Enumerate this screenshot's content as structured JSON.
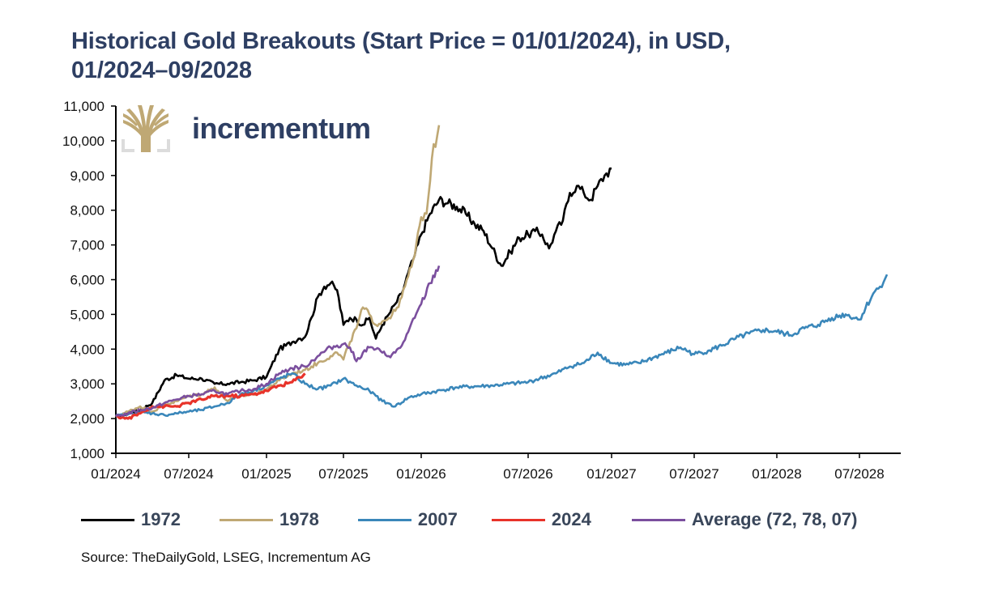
{
  "title_line1": "Historical Gold Breakouts (Start Price = 01/01/2024), in USD,",
  "title_line2": "01/2024–09/2028",
  "brand": {
    "name": "incrementum",
    "logo_icon": "tree-icon",
    "logo_color": "#bfa874",
    "name_color": "#2e3f63"
  },
  "source": "Source: TheDailyGold, LSEG, Incrementum AG",
  "chart_data": {
    "type": "line",
    "title": "Historical Gold Breakouts (Start Price = 01/01/2024), in USD, 01/2024–09/2028",
    "xlabel": "",
    "ylabel": "",
    "ylim": [
      1000,
      11000
    ],
    "yticks": [
      1000,
      2000,
      3000,
      4000,
      5000,
      6000,
      7000,
      8000,
      9000,
      10000,
      11000
    ],
    "ytick_labels": [
      "1,000",
      "2,000",
      "3,000",
      "4,000",
      "5,000",
      "6,000",
      "7,000",
      "8,000",
      "9,000",
      "10,000",
      "11,000"
    ],
    "xticks_months": [
      0,
      6,
      12,
      18,
      24,
      30,
      36,
      42,
      48,
      54
    ],
    "xtick_labels": [
      "01/2024",
      "07/2024",
      "01/2025",
      "07/2025",
      "01/2026",
      "07/2026",
      "01/2027",
      "07/2027",
      "01/2028",
      "07/2028"
    ],
    "xlim_months": [
      0,
      57
    ],
    "x_unit": "months since 01/2024",
    "grid": false,
    "legend_position": "bottom",
    "series": [
      {
        "name": "1972",
        "color": "#000000",
        "x": [
          0,
          1,
          2,
          3,
          4,
          5,
          6,
          7,
          8,
          9,
          10,
          11,
          12,
          13,
          14,
          14.5,
          15,
          15.5,
          16,
          16.5,
          17,
          17.5,
          18,
          18.5,
          19,
          19.5,
          20,
          20.5,
          21,
          21.5,
          22,
          22.5,
          23,
          23.5,
          24,
          24.5,
          25,
          25.5,
          26,
          26.5,
          27,
          27.5,
          28,
          28.5,
          29,
          29.5,
          30,
          30.5,
          31,
          31.5,
          32,
          32.5,
          33,
          33.5,
          34,
          34.5,
          35,
          35.5,
          36
        ],
        "values": [
          2060,
          2150,
          2250,
          2450,
          3100,
          3250,
          3150,
          3150,
          3000,
          3000,
          3050,
          3100,
          3200,
          4000,
          4200,
          4300,
          4350,
          4900,
          5500,
          5800,
          5900,
          5700,
          4700,
          4900,
          4850,
          4700,
          4900,
          4300,
          4700,
          5000,
          5300,
          5600,
          6200,
          6700,
          7300,
          7900,
          8300,
          8200,
          8100,
          7900,
          7600,
          7400,
          6900,
          6400,
          6800,
          7200,
          7300,
          7400,
          7300,
          6900,
          7400,
          7700,
          8500,
          8700,
          8500,
          8300,
          8700,
          9000,
          9200
        ]
      },
      {
        "name": "1978",
        "color": "#bfa874",
        "x": [
          0,
          1,
          2,
          3,
          4,
          5,
          6,
          7,
          8,
          9,
          10,
          11,
          12,
          13,
          14,
          15,
          16,
          17,
          17.5,
          18,
          18.5,
          19,
          19.5,
          20,
          20.5,
          21,
          21.5,
          22,
          22.5,
          23,
          23.5,
          24,
          24.3,
          24.6,
          25
        ],
        "values": [
          2050,
          2200,
          2350,
          2200,
          2400,
          2500,
          2650,
          2700,
          2900,
          2500,
          2650,
          2700,
          2850,
          3100,
          3300,
          3400,
          3600,
          3800,
          3900,
          3700,
          4200,
          4600,
          5200,
          5000,
          4700,
          4800,
          4900,
          5100,
          5500,
          6100,
          6700,
          7800,
          7900,
          9500,
          10450
        ]
      },
      {
        "name": "2007",
        "color": "#3a87ba",
        "x": [
          0,
          1,
          2,
          3,
          4,
          5,
          6,
          7,
          8,
          9,
          10,
          11,
          12,
          13,
          14,
          15,
          16,
          17,
          18,
          19,
          20,
          21,
          22,
          23,
          24,
          26,
          28,
          30,
          32,
          33,
          34,
          35,
          36,
          37,
          38,
          39,
          40,
          41,
          42,
          43,
          44,
          45,
          46,
          47,
          48,
          49,
          50,
          51,
          52,
          53,
          54,
          55,
          55.5,
          56
        ],
        "values": [
          2080,
          2120,
          2180,
          2150,
          2100,
          2150,
          2200,
          2250,
          2350,
          2450,
          2700,
          2800,
          2950,
          3150,
          3300,
          3000,
          2850,
          2950,
          3150,
          2950,
          2800,
          2500,
          2350,
          2600,
          2700,
          2900,
          2950,
          3050,
          3300,
          3500,
          3600,
          3900,
          3600,
          3550,
          3600,
          3750,
          3900,
          4050,
          3850,
          3950,
          4100,
          4300,
          4450,
          4550,
          4500,
          4400,
          4600,
          4700,
          4900,
          5000,
          4850,
          5600,
          5800,
          6150
        ]
      },
      {
        "name": "2024",
        "color": "#e8332a",
        "x": [
          0,
          1,
          2,
          3,
          4,
          5,
          6,
          7,
          8,
          9,
          10,
          11,
          12,
          13,
          14,
          15
        ],
        "values": [
          2060,
          2000,
          2150,
          2350,
          2350,
          2350,
          2450,
          2550,
          2650,
          2650,
          2650,
          2700,
          2800,
          2950,
          3050,
          3300
        ]
      },
      {
        "name": "Average (72, 78, 07)",
        "color": "#7b4f9e",
        "x": [
          0,
          1,
          2,
          3,
          4,
          5,
          6,
          7,
          8,
          9,
          10,
          11,
          12,
          13,
          14,
          15,
          16,
          17,
          18,
          18.5,
          19,
          19.5,
          20,
          20.5,
          21,
          21.5,
          22,
          22.5,
          23,
          23.5,
          24,
          24.5,
          25
        ],
        "values": [
          2060,
          2150,
          2250,
          2300,
          2450,
          2550,
          2650,
          2700,
          2800,
          2700,
          2800,
          2850,
          3000,
          3300,
          3450,
          3500,
          3800,
          4050,
          4150,
          4050,
          3650,
          3900,
          4050,
          4000,
          3900,
          3800,
          3900,
          4100,
          4500,
          4900,
          5300,
          5900,
          6400
        ]
      }
    ]
  }
}
